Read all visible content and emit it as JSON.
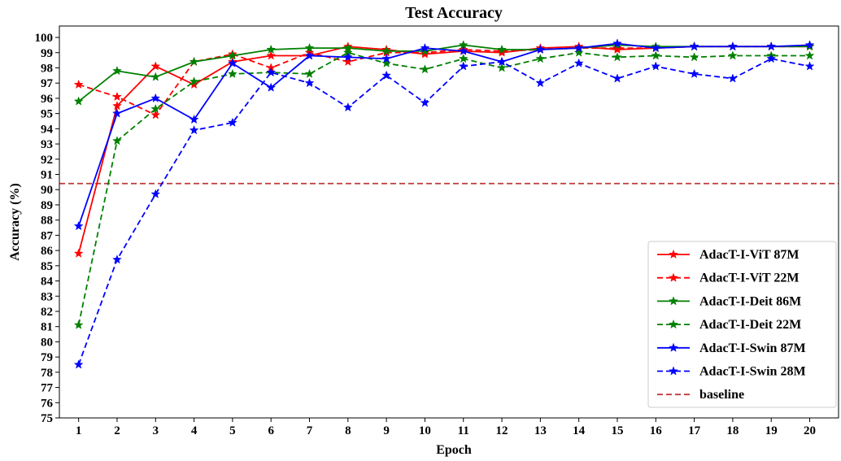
{
  "chart_data": {
    "type": "line",
    "title": "Test Accuracy",
    "xlabel": "Epoch",
    "ylabel": "Accuracy (%)",
    "xlim": [
      0.5,
      20.75
    ],
    "ylim": [
      75,
      100.75
    ],
    "x_ticks": [
      1,
      2,
      3,
      4,
      5,
      6,
      7,
      8,
      9,
      10,
      11,
      12,
      13,
      14,
      15,
      16,
      17,
      18,
      19,
      20
    ],
    "y_ticks": [
      75,
      76,
      77,
      78,
      79,
      80,
      81,
      82,
      83,
      84,
      85,
      86,
      87,
      88,
      89,
      90,
      91,
      92,
      93,
      94,
      95,
      96,
      97,
      98,
      99,
      100
    ],
    "grid": false,
    "legend_position": "lower-right",
    "x": [
      1,
      2,
      3,
      4,
      5,
      6,
      7,
      8,
      9,
      10,
      11,
      12,
      13,
      14,
      15,
      16,
      17,
      18,
      19,
      20
    ],
    "series": [
      {
        "name": "AdacT-I-ViT 87M",
        "color": "#ff0000",
        "dash": "solid",
        "marker": "star",
        "values": [
          85.8,
          95.5,
          98.1,
          96.9,
          98.4,
          98.8,
          98.8,
          99.4,
          99.2,
          98.9,
          99.1,
          99.0,
          99.3,
          99.4,
          99.2,
          99.3,
          99.4,
          99.4,
          99.4,
          99.4
        ]
      },
      {
        "name": "AdacT-I-ViT 22M",
        "color": "#ff0000",
        "dash": "dashed",
        "marker": "star",
        "values": [
          96.9,
          96.1,
          94.9,
          98.4,
          98.9,
          98.0,
          99.0,
          98.4,
          99.0,
          99.0,
          99.2,
          99.1,
          99.2,
          99.3,
          99.3,
          99.3,
          99.4,
          99.4,
          99.4,
          99.4
        ]
      },
      {
        "name": "AdacT-I-Deit 86M",
        "color": "#008000",
        "dash": "solid",
        "marker": "star",
        "values": [
          95.8,
          97.8,
          97.4,
          98.4,
          98.8,
          99.2,
          99.3,
          99.3,
          99.1,
          99.1,
          99.5,
          99.2,
          99.2,
          99.3,
          99.5,
          99.4,
          99.4,
          99.4,
          99.4,
          99.4
        ]
      },
      {
        "name": "AdacT-I-Deit 22M",
        "color": "#008000",
        "dash": "dashed",
        "marker": "star",
        "values": [
          81.1,
          93.2,
          95.3,
          97.1,
          97.6,
          97.7,
          97.6,
          99.0,
          98.3,
          97.9,
          98.6,
          98.0,
          98.6,
          99.0,
          98.7,
          98.8,
          98.7,
          98.8,
          98.8,
          98.8
        ]
      },
      {
        "name": "AdacT-I-Swin 87M",
        "color": "#0000ff",
        "dash": "solid",
        "marker": "star",
        "values": [
          87.6,
          95.0,
          96.0,
          94.6,
          98.3,
          96.7,
          98.8,
          98.7,
          98.6,
          99.3,
          99.1,
          98.4,
          99.2,
          99.3,
          99.6,
          99.3,
          99.4,
          99.4,
          99.4,
          99.5
        ]
      },
      {
        "name": "AdacT-I-Swin 28M",
        "color": "#0000ff",
        "dash": "dashed",
        "marker": "star",
        "values": [
          78.5,
          85.4,
          89.7,
          93.9,
          94.4,
          97.7,
          97.0,
          95.4,
          97.5,
          95.7,
          98.1,
          98.4,
          97.0,
          98.3,
          97.3,
          98.1,
          97.6,
          97.3,
          98.6,
          98.1
        ]
      }
    ],
    "baseline": {
      "name": "baseline",
      "value": 90.4,
      "color": "#c0393b",
      "dash": "dashed"
    }
  }
}
